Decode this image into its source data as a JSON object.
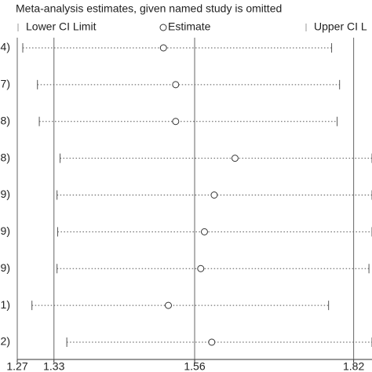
{
  "chart_data": {
    "type": "interval",
    "title": "Meta-analysis estimates, given named study is omitted",
    "categories": [
      "4)",
      "7)",
      "8)",
      "8)",
      "9)",
      "9)",
      "9)",
      "1)",
      "2)"
    ],
    "series": [
      {
        "name": "Lower CI Limit",
        "color": "#555555",
        "values": [
          1.279,
          1.303,
          1.306,
          1.34,
          1.335,
          1.336,
          1.335,
          1.294,
          1.351
        ]
      },
      {
        "name": "Estimate",
        "color": "#333333",
        "values": [
          1.509,
          1.529,
          1.529,
          1.626,
          1.592,
          1.576,
          1.57,
          1.517,
          1.588
        ]
      },
      {
        "name": "Upper CI L",
        "color": "#555555",
        "values": [
          1.784,
          1.797,
          1.793,
          1.85,
          1.85,
          1.85,
          1.845,
          1.779,
          1.85
        ]
      }
    ],
    "xlim": [
      1.27,
      1.85
    ],
    "xticks": [
      1.27,
      1.33,
      1.56,
      1.82
    ],
    "grid": true
  }
}
